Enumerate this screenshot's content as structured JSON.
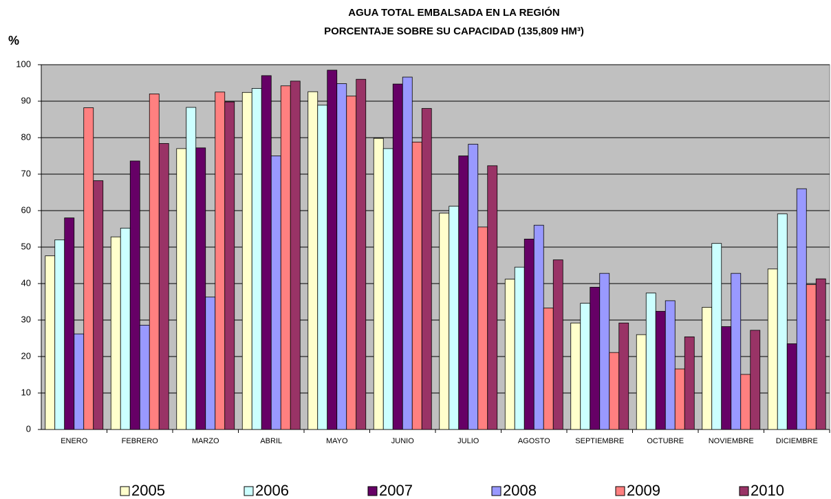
{
  "chart_data": {
    "type": "bar",
    "title": [
      "AGUA TOTAL EMBALSADA EN LA REGIÓN",
      "PORCENTAJE SOBRE SU CAPACIDAD (135,809 HM³)"
    ],
    "y_label": "%",
    "categories": [
      "ENERO",
      "FEBRERO",
      "MARZO",
      "ABRIL",
      "MAYO",
      "JUNIO",
      "JULIO",
      "AGOSTO",
      "SEPTIEMBRE",
      "OCTUBRE",
      "NOVIEMBRE",
      "DICIEMBRE"
    ],
    "series": [
      {
        "name": "2005",
        "color": "#ffffcc",
        "values": [
          47.6,
          52.8,
          77,
          92.4,
          92.6,
          79.8,
          59.3,
          41.2,
          29.2,
          26,
          33.5,
          44
        ]
      },
      {
        "name": "2006",
        "color": "#ccffff",
        "values": [
          52,
          55.2,
          88.3,
          93.5,
          88.9,
          77,
          61.2,
          44.5,
          34.6,
          37.4,
          51,
          59.1
        ]
      },
      {
        "name": "2007",
        "color": "#660066",
        "values": [
          58,
          73.6,
          77.2,
          97,
          98.5,
          94.7,
          75,
          52.2,
          39,
          32.4,
          28.2,
          23.5
        ]
      },
      {
        "name": "2008",
        "color": "#9999ff",
        "values": [
          26.2,
          28.6,
          36.3,
          75,
          94.8,
          96.6,
          78.2,
          56,
          42.8,
          35.3,
          42.8,
          66
        ]
      },
      {
        "name": "2009",
        "color": "#ff8080",
        "values": [
          88.2,
          92,
          92.5,
          94.2,
          91.4,
          78.8,
          55.5,
          33.3,
          21.1,
          16.6,
          15.1,
          39.7
        ]
      },
      {
        "name": "2010",
        "color": "#993366",
        "values": [
          68.2,
          78.4,
          89.8,
          95.5,
          96,
          88,
          72.3,
          46.5,
          29.2,
          25.4,
          27.2,
          41.3
        ]
      }
    ],
    "ylim": [
      0,
      100
    ],
    "yticks": [
      0,
      10,
      20,
      30,
      40,
      50,
      60,
      70,
      80,
      90,
      100
    ],
    "grid": true,
    "legend": "bottom"
  }
}
